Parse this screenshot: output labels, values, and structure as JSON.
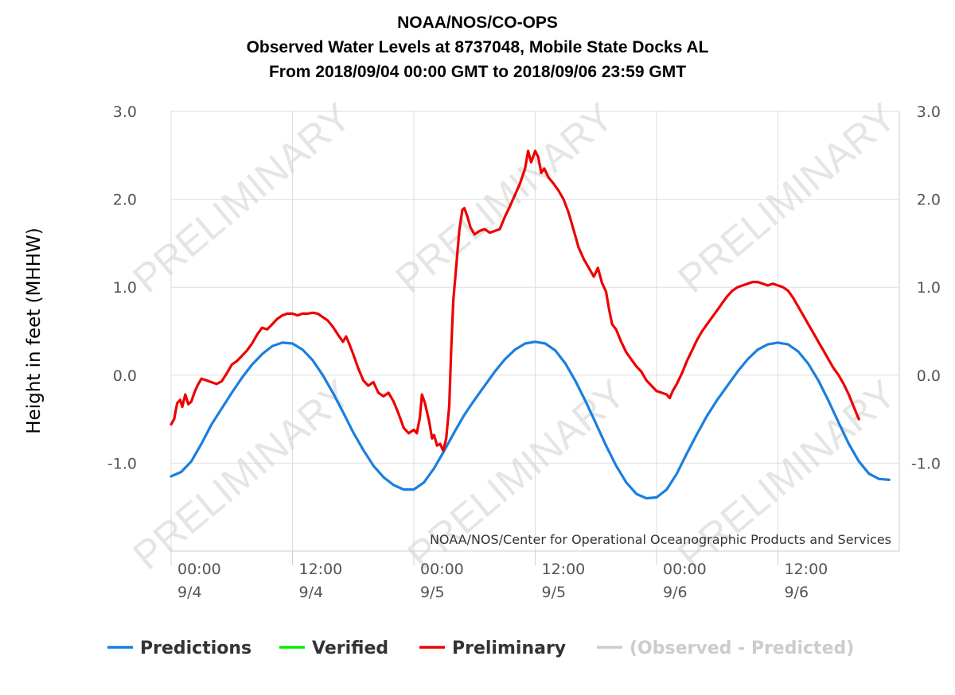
{
  "chart_data": {
    "type": "line",
    "title": [
      "NOAA/NOS/CO-OPS",
      "Observed Water Levels at 8737048, Mobile State Docks AL",
      "From 2018/09/04 00:00 GMT to 2018/09/06 23:59 GMT"
    ],
    "ylabel": "Height in feet (MHHW)",
    "ylim": [
      -2.0,
      3.0
    ],
    "xlim": [
      0,
      72
    ],
    "y_tick_labels": [
      "3.0",
      "2.0",
      "1.0",
      "0.0",
      "-1.0"
    ],
    "y_tick_values": [
      3.0,
      2.0,
      1.0,
      0.0,
      -1.0
    ],
    "x_ticks": [
      {
        "value": 0,
        "time": "00:00",
        "date": "9/4"
      },
      {
        "value": 12,
        "time": "12:00",
        "date": "9/4"
      },
      {
        "value": 24,
        "time": "00:00",
        "date": "9/5"
      },
      {
        "value": 36,
        "time": "12:00",
        "date": "9/5"
      },
      {
        "value": 48,
        "time": "00:00",
        "date": "9/6"
      },
      {
        "value": 60,
        "time": "12:00",
        "date": "9/6"
      }
    ],
    "grid": true,
    "watermark": "PRELIMINARY",
    "credit": "NOAA/NOS/Center for Operational Oceanographic Products and Services",
    "legend": [
      {
        "name": "Predictions",
        "color": "#1a7fe0",
        "active": true
      },
      {
        "name": "Verified",
        "color": "#00ee00",
        "active": true
      },
      {
        "name": "Preliminary",
        "color": "#ee0000",
        "active": true
      },
      {
        "name": "(Observed - Predicted)",
        "color": "#cccccc",
        "active": false
      }
    ],
    "legend_position": "bottom",
    "series": [
      {
        "name": "Predictions",
        "color": "#1a7fe0",
        "points": [
          [
            0,
            -1.15
          ],
          [
            1,
            -1.1
          ],
          [
            2,
            -0.98
          ],
          [
            3,
            -0.78
          ],
          [
            4,
            -0.56
          ],
          [
            5,
            -0.38
          ],
          [
            6,
            -0.2
          ],
          [
            7,
            -0.03
          ],
          [
            8,
            0.12
          ],
          [
            9,
            0.24
          ],
          [
            10,
            0.33
          ],
          [
            11,
            0.37
          ],
          [
            12,
            0.36
          ],
          [
            13,
            0.29
          ],
          [
            14,
            0.17
          ],
          [
            15,
            0.0
          ],
          [
            16,
            -0.2
          ],
          [
            17,
            -0.42
          ],
          [
            18,
            -0.65
          ],
          [
            19,
            -0.85
          ],
          [
            20,
            -1.03
          ],
          [
            21,
            -1.16
          ],
          [
            22,
            -1.25
          ],
          [
            23,
            -1.3
          ],
          [
            24,
            -1.3
          ],
          [
            25,
            -1.22
          ],
          [
            26,
            -1.06
          ],
          [
            27,
            -0.86
          ],
          [
            28,
            -0.65
          ],
          [
            29,
            -0.45
          ],
          [
            30,
            -0.28
          ],
          [
            31,
            -0.12
          ],
          [
            32,
            0.04
          ],
          [
            33,
            0.18
          ],
          [
            34,
            0.29
          ],
          [
            35,
            0.36
          ],
          [
            36,
            0.38
          ],
          [
            37,
            0.36
          ],
          [
            38,
            0.28
          ],
          [
            39,
            0.13
          ],
          [
            40,
            -0.07
          ],
          [
            41,
            -0.3
          ],
          [
            42,
            -0.55
          ],
          [
            43,
            -0.8
          ],
          [
            44,
            -1.03
          ],
          [
            45,
            -1.22
          ],
          [
            46,
            -1.35
          ],
          [
            47,
            -1.4
          ],
          [
            48,
            -1.39
          ],
          [
            49,
            -1.3
          ],
          [
            50,
            -1.12
          ],
          [
            51,
            -0.89
          ],
          [
            52,
            -0.67
          ],
          [
            53,
            -0.46
          ],
          [
            54,
            -0.28
          ],
          [
            55,
            -0.12
          ],
          [
            56,
            0.04
          ],
          [
            57,
            0.18
          ],
          [
            58,
            0.29
          ],
          [
            59,
            0.35
          ],
          [
            60,
            0.37
          ],
          [
            61,
            0.35
          ],
          [
            62,
            0.27
          ],
          [
            63,
            0.13
          ],
          [
            64,
            -0.06
          ],
          [
            65,
            -0.29
          ],
          [
            66,
            -0.54
          ],
          [
            67,
            -0.78
          ],
          [
            68,
            -0.98
          ],
          [
            69,
            -1.12
          ],
          [
            70,
            -1.18
          ],
          [
            71,
            -1.19
          ]
        ]
      },
      {
        "name": "Verified",
        "color": "#00ee00",
        "points": []
      },
      {
        "name": "Preliminary",
        "color": "#ee0000",
        "points": [
          [
            0,
            -0.56
          ],
          [
            0.3,
            -0.5
          ],
          [
            0.6,
            -0.32
          ],
          [
            0.9,
            -0.28
          ],
          [
            1.1,
            -0.36
          ],
          [
            1.4,
            -0.22
          ],
          [
            1.7,
            -0.33
          ],
          [
            2,
            -0.3
          ],
          [
            2.3,
            -0.2
          ],
          [
            2.6,
            -0.12
          ],
          [
            3,
            -0.04
          ],
          [
            3.5,
            -0.06
          ],
          [
            4,
            -0.08
          ],
          [
            4.5,
            -0.1
          ],
          [
            5,
            -0.07
          ],
          [
            5.5,
            0.02
          ],
          [
            6,
            0.12
          ],
          [
            6.5,
            0.16
          ],
          [
            7,
            0.22
          ],
          [
            7.5,
            0.28
          ],
          [
            8,
            0.36
          ],
          [
            8.5,
            0.46
          ],
          [
            9,
            0.54
          ],
          [
            9.5,
            0.52
          ],
          [
            10,
            0.58
          ],
          [
            10.5,
            0.64
          ],
          [
            11,
            0.68
          ],
          [
            11.5,
            0.7
          ],
          [
            12,
            0.7
          ],
          [
            12.5,
            0.68
          ],
          [
            13,
            0.7
          ],
          [
            13.5,
            0.7
          ],
          [
            14,
            0.71
          ],
          [
            14.5,
            0.7
          ],
          [
            15,
            0.66
          ],
          [
            15.5,
            0.62
          ],
          [
            16,
            0.55
          ],
          [
            16.5,
            0.46
          ],
          [
            17,
            0.38
          ],
          [
            17.3,
            0.44
          ],
          [
            17.6,
            0.36
          ],
          [
            18,
            0.24
          ],
          [
            18.5,
            0.08
          ],
          [
            19,
            -0.06
          ],
          [
            19.5,
            -0.12
          ],
          [
            20,
            -0.08
          ],
          [
            20.5,
            -0.2
          ],
          [
            21,
            -0.24
          ],
          [
            21.5,
            -0.2
          ],
          [
            22,
            -0.3
          ],
          [
            22.5,
            -0.44
          ],
          [
            23,
            -0.6
          ],
          [
            23.5,
            -0.66
          ],
          [
            24,
            -0.62
          ],
          [
            24.3,
            -0.66
          ],
          [
            24.6,
            -0.48
          ],
          [
            24.8,
            -0.22
          ],
          [
            25.1,
            -0.32
          ],
          [
            25.5,
            -0.52
          ],
          [
            25.8,
            -0.72
          ],
          [
            26,
            -0.68
          ],
          [
            26.3,
            -0.8
          ],
          [
            26.6,
            -0.78
          ],
          [
            26.9,
            -0.86
          ],
          [
            27.2,
            -0.72
          ],
          [
            27.5,
            -0.35
          ],
          [
            27.7,
            0.3
          ],
          [
            27.9,
            0.85
          ],
          [
            28.2,
            1.25
          ],
          [
            28.5,
            1.65
          ],
          [
            28.8,
            1.88
          ],
          [
            29,
            1.9
          ],
          [
            29.3,
            1.8
          ],
          [
            29.6,
            1.68
          ],
          [
            30,
            1.6
          ],
          [
            30.5,
            1.64
          ],
          [
            31,
            1.66
          ],
          [
            31.5,
            1.62
          ],
          [
            32,
            1.64
          ],
          [
            32.5,
            1.66
          ],
          [
            33,
            1.8
          ],
          [
            33.5,
            1.92
          ],
          [
            34,
            2.05
          ],
          [
            34.5,
            2.18
          ],
          [
            35,
            2.35
          ],
          [
            35.3,
            2.55
          ],
          [
            35.6,
            2.42
          ],
          [
            36,
            2.55
          ],
          [
            36.3,
            2.48
          ],
          [
            36.6,
            2.3
          ],
          [
            36.9,
            2.35
          ],
          [
            37.3,
            2.25
          ],
          [
            37.8,
            2.18
          ],
          [
            38.3,
            2.1
          ],
          [
            38.8,
            2.0
          ],
          [
            39.3,
            1.85
          ],
          [
            39.8,
            1.65
          ],
          [
            40.3,
            1.45
          ],
          [
            40.8,
            1.32
          ],
          [
            41.3,
            1.22
          ],
          [
            41.8,
            1.12
          ],
          [
            42.2,
            1.22
          ],
          [
            42.6,
            1.05
          ],
          [
            43,
            0.95
          ],
          [
            43.3,
            0.75
          ],
          [
            43.6,
            0.58
          ],
          [
            44,
            0.52
          ],
          [
            44.5,
            0.38
          ],
          [
            45,
            0.26
          ],
          [
            45.5,
            0.18
          ],
          [
            46,
            0.1
          ],
          [
            46.5,
            0.04
          ],
          [
            47,
            -0.06
          ],
          [
            47.5,
            -0.12
          ],
          [
            48,
            -0.18
          ],
          [
            48.5,
            -0.2
          ],
          [
            49,
            -0.22
          ],
          [
            49.3,
            -0.26
          ],
          [
            49.6,
            -0.18
          ],
          [
            50,
            -0.1
          ],
          [
            50.5,
            0.02
          ],
          [
            51,
            0.16
          ],
          [
            51.5,
            0.28
          ],
          [
            52,
            0.4
          ],
          [
            52.5,
            0.5
          ],
          [
            53,
            0.58
          ],
          [
            53.5,
            0.66
          ],
          [
            54,
            0.74
          ],
          [
            54.5,
            0.82
          ],
          [
            55,
            0.9
          ],
          [
            55.5,
            0.96
          ],
          [
            56,
            1.0
          ],
          [
            56.5,
            1.02
          ],
          [
            57,
            1.04
          ],
          [
            57.5,
            1.06
          ],
          [
            58,
            1.06
          ],
          [
            58.5,
            1.04
          ],
          [
            59,
            1.02
          ],
          [
            59.5,
            1.04
          ],
          [
            60,
            1.02
          ],
          [
            60.5,
            1.0
          ],
          [
            61,
            0.96
          ],
          [
            61.5,
            0.88
          ],
          [
            62,
            0.78
          ],
          [
            62.5,
            0.68
          ],
          [
            63,
            0.58
          ],
          [
            63.5,
            0.48
          ],
          [
            64,
            0.38
          ],
          [
            64.5,
            0.28
          ],
          [
            65,
            0.18
          ],
          [
            65.5,
            0.08
          ],
          [
            66,
            0.0
          ],
          [
            66.5,
            -0.1
          ],
          [
            67,
            -0.22
          ],
          [
            67.5,
            -0.36
          ],
          [
            68,
            -0.5
          ]
        ]
      }
    ]
  }
}
